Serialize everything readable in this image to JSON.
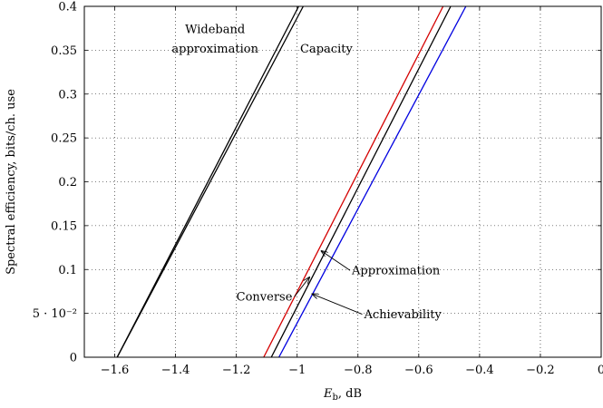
{
  "chart_data": {
    "type": "line",
    "title": "",
    "xlabel": "E_b, dB",
    "xlabel_main": "E",
    "xlabel_sub": "b",
    "xlabel_unit": ", dB",
    "ylabel": "Spectral efficiency, bits/ch. use",
    "xlim": [
      -1.7,
      0
    ],
    "ylim": [
      0,
      0.4
    ],
    "grid": true,
    "x_ticks": [
      -1.6,
      -1.4,
      -1.2,
      -1,
      -0.8,
      -0.6,
      -0.4,
      -0.2,
      0
    ],
    "x_tick_labels": [
      "−1.6",
      "−1.4",
      "−1.2",
      "−1",
      "−0.8",
      "−0.6",
      "−0.4",
      "−0.2",
      "0"
    ],
    "y_ticks": [
      0,
      0.05,
      0.1,
      0.15,
      0.2,
      0.25,
      0.3,
      0.35,
      0.4
    ],
    "y_tick_labels": [
      "0",
      "5 · 10⁻²",
      "0.1",
      "0.15",
      "0.2",
      "0.25",
      "0.3",
      "0.35",
      "0.4"
    ],
    "series": [
      {
        "name": "Wideband approximation",
        "color": "#000000",
        "x": [
          -1.592,
          -0.98
        ],
        "y": [
          0,
          0.4
        ]
      },
      {
        "name": "Capacity",
        "color": "#000000",
        "x": [
          -1.592,
          -0.995
        ],
        "y": [
          0,
          0.4
        ]
      },
      {
        "name": "Converse",
        "color": "#d40000",
        "x": [
          -1.11,
          -0.52
        ],
        "y": [
          0,
          0.4
        ]
      },
      {
        "name": "Approximation",
        "color": "#000000",
        "x": [
          -1.085,
          -0.495
        ],
        "y": [
          0,
          0.4
        ]
      },
      {
        "name": "Achievability",
        "color": "#0000e0",
        "x": [
          -1.06,
          -0.445
        ],
        "y": [
          0,
          0.4
        ]
      }
    ],
    "annotations": [
      {
        "name": "wideband",
        "lines": [
          "Wideband",
          "approximation"
        ],
        "anchor": "middle",
        "x": -1.27,
        "y": [
          0.374,
          0.352
        ]
      },
      {
        "name": "capacity",
        "lines": [
          "Capacity"
        ],
        "anchor": "start",
        "x": -0.99,
        "y": [
          0.352
        ]
      },
      {
        "name": "converse",
        "lines": [
          "Converse"
        ],
        "anchor": "start",
        "x": -1.2,
        "y": [
          0.069
        ],
        "arrow_to": [
          -0.96,
          0.091
        ]
      },
      {
        "name": "approximation",
        "lines": [
          "Approximation"
        ],
        "anchor": "start",
        "x": -0.82,
        "y": [
          0.099
        ],
        "arrow_to": [
          -0.92,
          0.121
        ]
      },
      {
        "name": "achievability",
        "lines": [
          "Achievability"
        ],
        "anchor": "start",
        "x": -0.78,
        "y": [
          0.049
        ],
        "arrow_to": [
          -0.95,
          0.072
        ]
      }
    ]
  }
}
